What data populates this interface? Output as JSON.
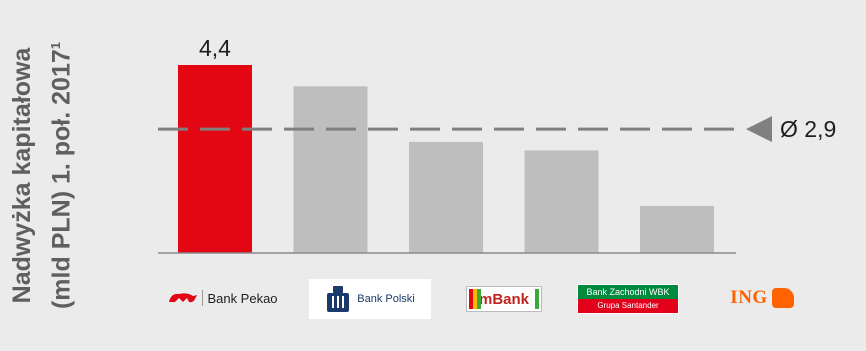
{
  "chart_data": {
    "type": "bar",
    "categories": [
      "Bank Pekao",
      "Bank Polski",
      "mBank",
      "Bank Zachodni WBK",
      "ING"
    ],
    "values": [
      4.4,
      3.9,
      2.6,
      2.4,
      1.1
    ],
    "value_label": "4,4",
    "highlight_index": 0,
    "ylabel_line1": "Nadwyżka kapitałowa",
    "ylabel_line2": "(mld PLN) 1. poł. 2017",
    "ylabel_footnote": "1",
    "average_value": 2.9,
    "average_label": "Ø 2,9",
    "ylim": [
      0,
      4.4
    ],
    "grid": false,
    "legend": "none"
  },
  "logos": {
    "pekao_text": "Bank Pekao",
    "pko_text": "Bank Polski",
    "mbank_text": "mBank",
    "bzwbk_line1": "Bank Zachodni WBK",
    "bzwbk_line2": "Grupa Santander",
    "ing_text": "ING"
  },
  "colors": {
    "highlight": "#e30613",
    "bar": "#bebebe",
    "average_line": "#808080",
    "baseline": "#8a8a8a",
    "text": "#1e1e1e",
    "background": "#ebebeb"
  }
}
